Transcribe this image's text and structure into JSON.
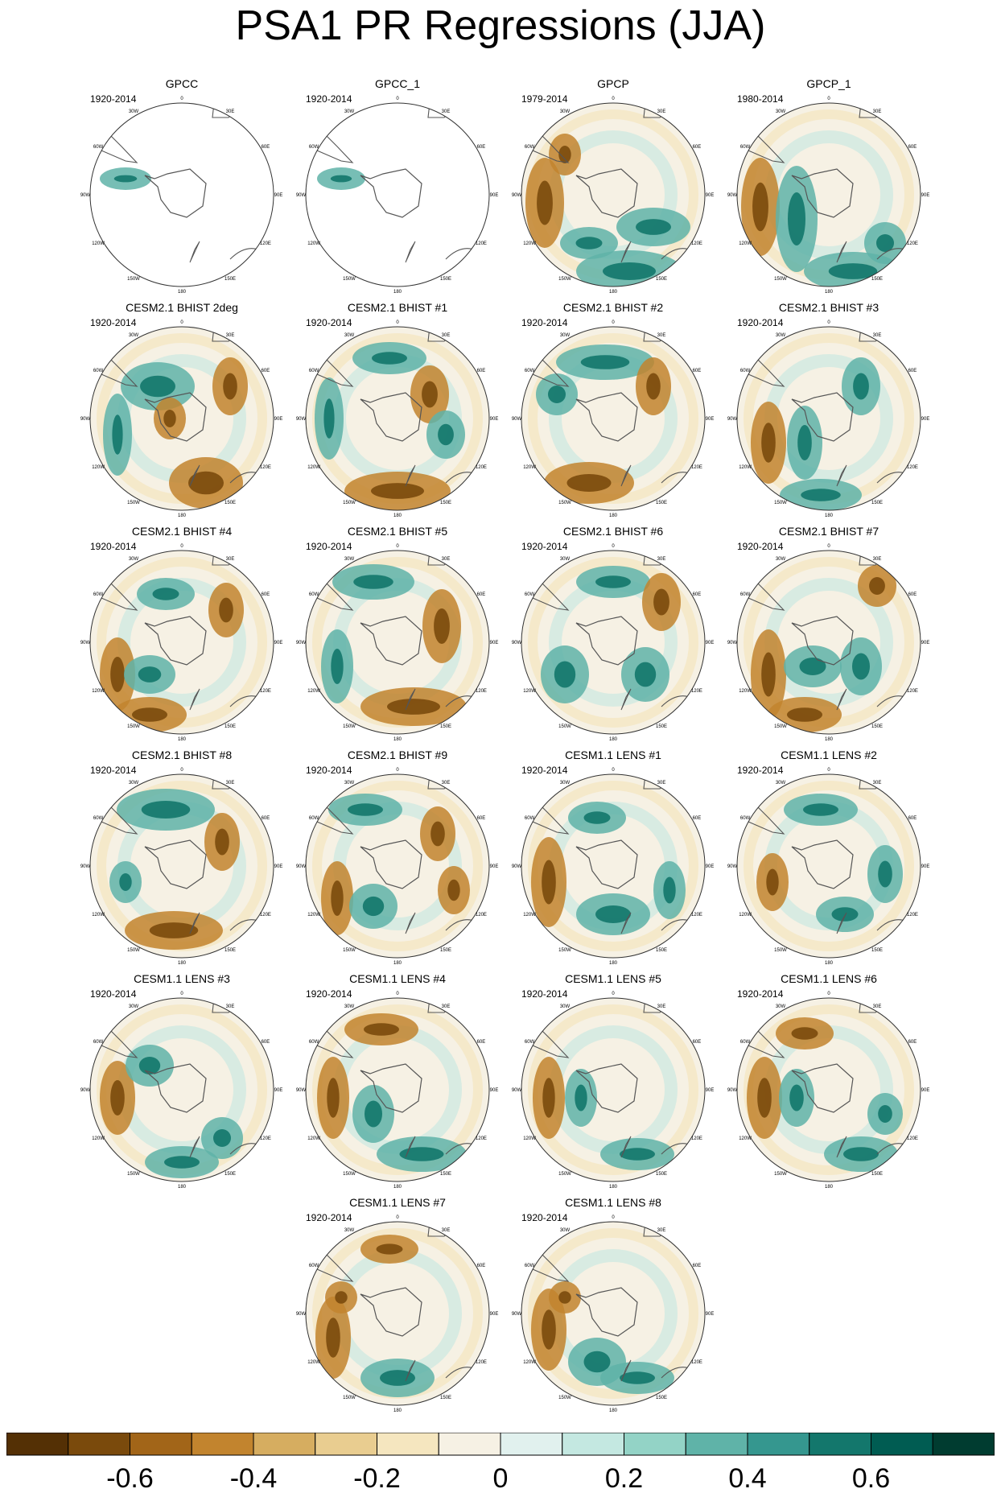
{
  "title": "PSA1 PR Regressions (JJA)",
  "longitude_labels": [
    "0",
    "30E",
    "60E",
    "90E",
    "120E",
    "150E",
    "180",
    "150W",
    "120W",
    "90W",
    "60W",
    "30W"
  ],
  "panels": [
    {
      "title": "GPCC",
      "period": "1920-2014",
      "coverage": "land-only"
    },
    {
      "title": "GPCC_1",
      "period": "1920-2014",
      "coverage": "land-only"
    },
    {
      "title": "GPCP",
      "period": "1979-2014",
      "coverage": "global"
    },
    {
      "title": "GPCP_1",
      "period": "1980-2014",
      "coverage": "global"
    },
    {
      "title": "CESM2.1 BHIST 2deg",
      "period": "1920-2014",
      "coverage": "global"
    },
    {
      "title": "CESM2.1 BHIST #1",
      "period": "1920-2014",
      "coverage": "global"
    },
    {
      "title": "CESM2.1 BHIST #2",
      "period": "1920-2014",
      "coverage": "global"
    },
    {
      "title": "CESM2.1 BHIST #3",
      "period": "1920-2014",
      "coverage": "global"
    },
    {
      "title": "CESM2.1 BHIST #4",
      "period": "1920-2014",
      "coverage": "global"
    },
    {
      "title": "CESM2.1 BHIST #5",
      "period": "1920-2014",
      "coverage": "global"
    },
    {
      "title": "CESM2.1 BHIST #6",
      "period": "1920-2014",
      "coverage": "global"
    },
    {
      "title": "CESM2.1 BHIST #7",
      "period": "1920-2014",
      "coverage": "global"
    },
    {
      "title": "CESM2.1 BHIST #8",
      "period": "1920-2014",
      "coverage": "global"
    },
    {
      "title": "CESM2.1 BHIST #9",
      "period": "1920-2014",
      "coverage": "global"
    },
    {
      "title": "CESM1.1 LENS #1",
      "period": "1920-2014",
      "coverage": "global"
    },
    {
      "title": "CESM1.1 LENS #2",
      "period": "1920-2014",
      "coverage": "global"
    },
    {
      "title": "CESM1.1 LENS #3",
      "period": "1920-2014",
      "coverage": "global"
    },
    {
      "title": "CESM1.1 LENS #4",
      "period": "1920-2014",
      "coverage": "global"
    },
    {
      "title": "CESM1.1 LENS #5",
      "period": "1920-2014",
      "coverage": "global"
    },
    {
      "title": "CESM1.1 LENS #6",
      "period": "1920-2014",
      "coverage": "global"
    },
    {
      "title": "CESM1.1 LENS #7",
      "period": "1920-2014",
      "coverage": "global"
    },
    {
      "title": "CESM1.1 LENS #8",
      "period": "1920-2014",
      "coverage": "global"
    }
  ],
  "colorbar": {
    "colors": [
      "#543005",
      "#7a4a0c",
      "#a26518",
      "#c2842e",
      "#d6ad60",
      "#e9cd90",
      "#f5e6bf",
      "#f6f1e4",
      "#e1f1ee",
      "#c4e8e1",
      "#93d3c6",
      "#5fb3a8",
      "#35978f",
      "#13776c",
      "#005c52",
      "#003c30"
    ],
    "tick_labels": [
      "-0.6",
      "-0.4",
      "-0.2",
      "0",
      "0.2",
      "0.4",
      "0.6"
    ],
    "tick_at_boundary": [
      2,
      4,
      6,
      8,
      10,
      12,
      14
    ]
  },
  "colors": {
    "dry": "#8c5a16",
    "wet": "#1f8a7e",
    "neutral": "#f6f1e4",
    "coastline": "#555555"
  }
}
